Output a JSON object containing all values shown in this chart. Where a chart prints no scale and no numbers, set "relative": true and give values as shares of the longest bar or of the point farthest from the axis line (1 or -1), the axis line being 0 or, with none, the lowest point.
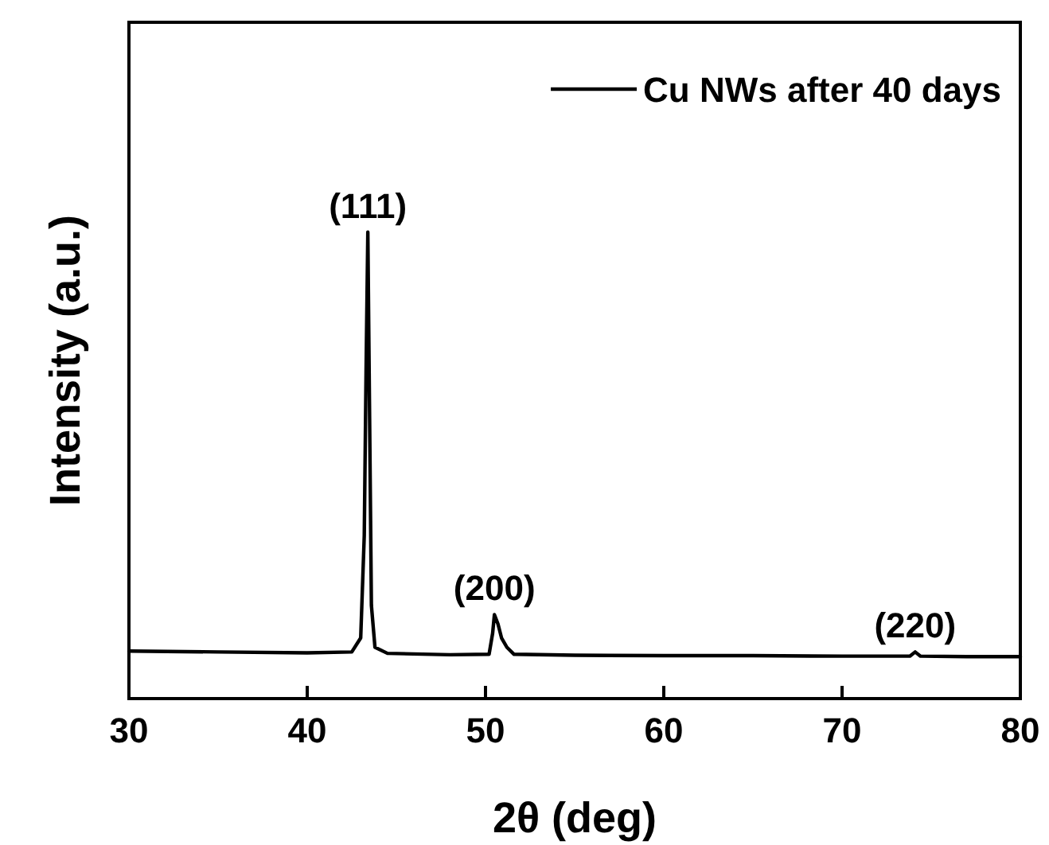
{
  "chart_data": {
    "type": "line",
    "relative": true,
    "xlabel": "2θ (deg)",
    "ylabel": "Intensity (a.u.)",
    "xlim": [
      30,
      80
    ],
    "xticks": [
      30,
      40,
      50,
      60,
      70,
      80
    ],
    "legend": "top right",
    "tick_labels": "x",
    "series": [
      {
        "name": "Cu NWs after 40 days",
        "color": "#000000",
        "x": [
          30,
          35,
          40,
          42.5,
          43.0,
          43.2,
          43.3,
          43.4,
          43.5,
          43.6,
          43.8,
          44.5,
          48,
          50.2,
          50.4,
          50.5,
          50.7,
          50.9,
          51.2,
          51.6,
          55,
          60,
          65,
          70,
          73.8,
          74.1,
          74.4,
          77,
          80
        ],
        "values": [
          0.102,
          0.1,
          0.098,
          0.1,
          0.13,
          0.35,
          0.7,
          1,
          0.6,
          0.2,
          0.11,
          0.097,
          0.094,
          0.095,
          0.14,
          0.18,
          0.16,
          0.13,
          0.11,
          0.095,
          0.093,
          0.092,
          0.092,
          0.091,
          0.091,
          0.1,
          0.091,
          0.09,
          0.09
        ]
      }
    ],
    "annotations": [
      {
        "text": "(111)",
        "x": 43.4,
        "y": 1
      },
      {
        "text": "(200)",
        "x": 50.5,
        "y": 0.18
      },
      {
        "text": "(220)",
        "x": 74.1,
        "y": 0.1
      }
    ]
  }
}
